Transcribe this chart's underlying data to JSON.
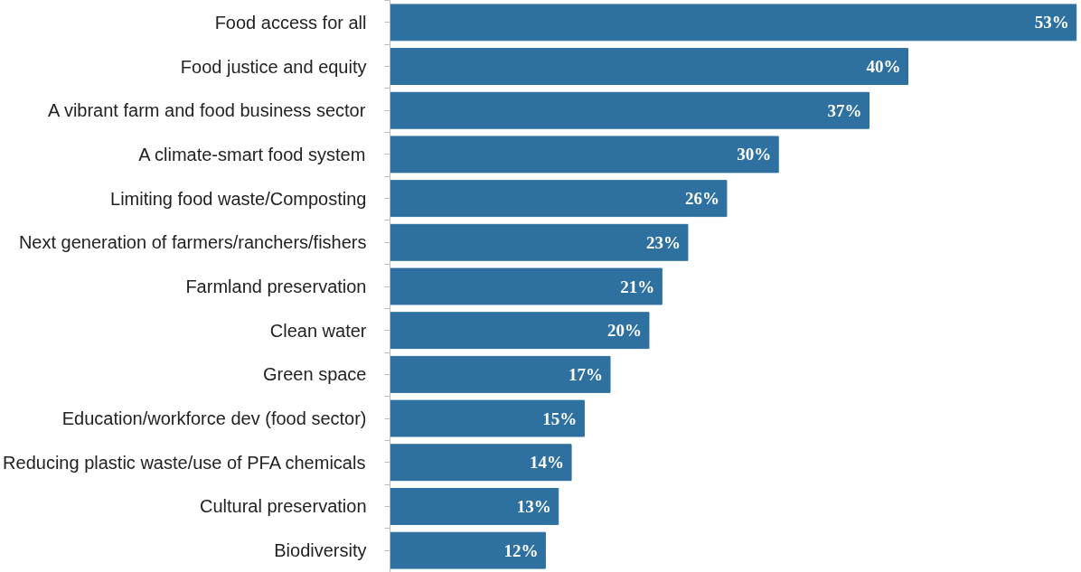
{
  "chart_data": {
    "type": "bar",
    "orientation": "horizontal",
    "color": "#2e71a0",
    "data_labels": true,
    "grid": false,
    "categories": [
      "Food access for all",
      "Food justice and equity",
      "A vibrant farm and food business sector",
      "A climate-smart food system",
      "Limiting food waste/Composting",
      "Next generation of farmers/ranchers/fishers",
      "Farmland preservation",
      "Clean water",
      "Green space",
      "Education/workforce dev (food sector)",
      "Reducing plastic waste/use of PFA chemicals",
      "Cultural preservation",
      "Biodiversity"
    ],
    "values": [
      53,
      40,
      37,
      30,
      26,
      23,
      21,
      20,
      17,
      15,
      14,
      13,
      12
    ],
    "value_labels": [
      "53%",
      "40%",
      "37%",
      "30%",
      "26%",
      "23%",
      "21%",
      "20%",
      "17%",
      "15%",
      "14%",
      "13%",
      "12%"
    ]
  }
}
